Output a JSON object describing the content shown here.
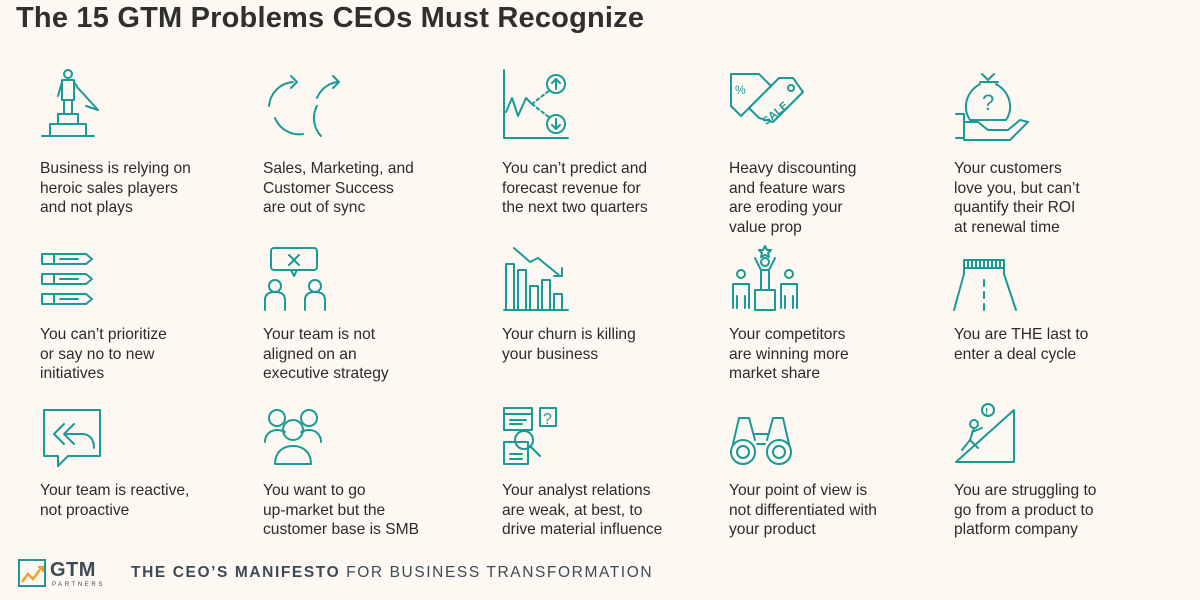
{
  "title": "The 15 GTM Problems CEOs Must Recognize",
  "accent_color": "#1a9a96",
  "items": [
    {
      "icon": "heroic-person-icon",
      "text": "Business is relying on\nheroic sales players\nand not plays"
    },
    {
      "icon": "sync-arrows-icon",
      "text": "Sales, Marketing, and\nCustomer Success\nare out of sync"
    },
    {
      "icon": "forecast-chart-icon",
      "text": "You can’t predict and\nforecast revenue for\nthe next two quarters"
    },
    {
      "icon": "sale-tag-icon",
      "text": "Heavy discounting\nand feature wars\nare eroding your\nvalue prop"
    },
    {
      "icon": "money-bag-question-icon",
      "text": "Your customers\nlove you, but can’t\nquantify their ROI\nat renewal time"
    },
    {
      "icon": "priority-list-icon",
      "text": "You can’t prioritize\nor say no to new\ninitiatives"
    },
    {
      "icon": "disagreement-icon",
      "text": "Your team is not\naligned on an\nexecutive strategy"
    },
    {
      "icon": "declining-chart-icon",
      "text": "Your churn is killing\nyour business"
    },
    {
      "icon": "podium-winner-icon",
      "text": "Your competitors\nare winning more\nmarket share"
    },
    {
      "icon": "finish-line-icon",
      "text": "You are THE last to\nenter a deal cycle"
    },
    {
      "icon": "reply-chat-icon",
      "text": "Your team is reactive,\nnot proactive"
    },
    {
      "icon": "group-people-icon",
      "text": "You want to go\nup-market but the\ncustomer base is SMB"
    },
    {
      "icon": "analyst-research-icon",
      "text": "Your analyst relations\nare weak, at best, to\ndrive material influence"
    },
    {
      "icon": "binoculars-icon",
      "text": "Your point of view is\nnot differentiated with\nyour product"
    },
    {
      "icon": "climbing-hill-icon",
      "text": "You are struggling to\ngo from a product to\nplatform company"
    }
  ],
  "footer": {
    "logo_text": "GTM",
    "logo_sub": "PARTNERS",
    "tagline_bold": "THE CEO’S MANIFESTO",
    "tagline_rest": " FOR BUSINESS TRANSFORMATION"
  }
}
